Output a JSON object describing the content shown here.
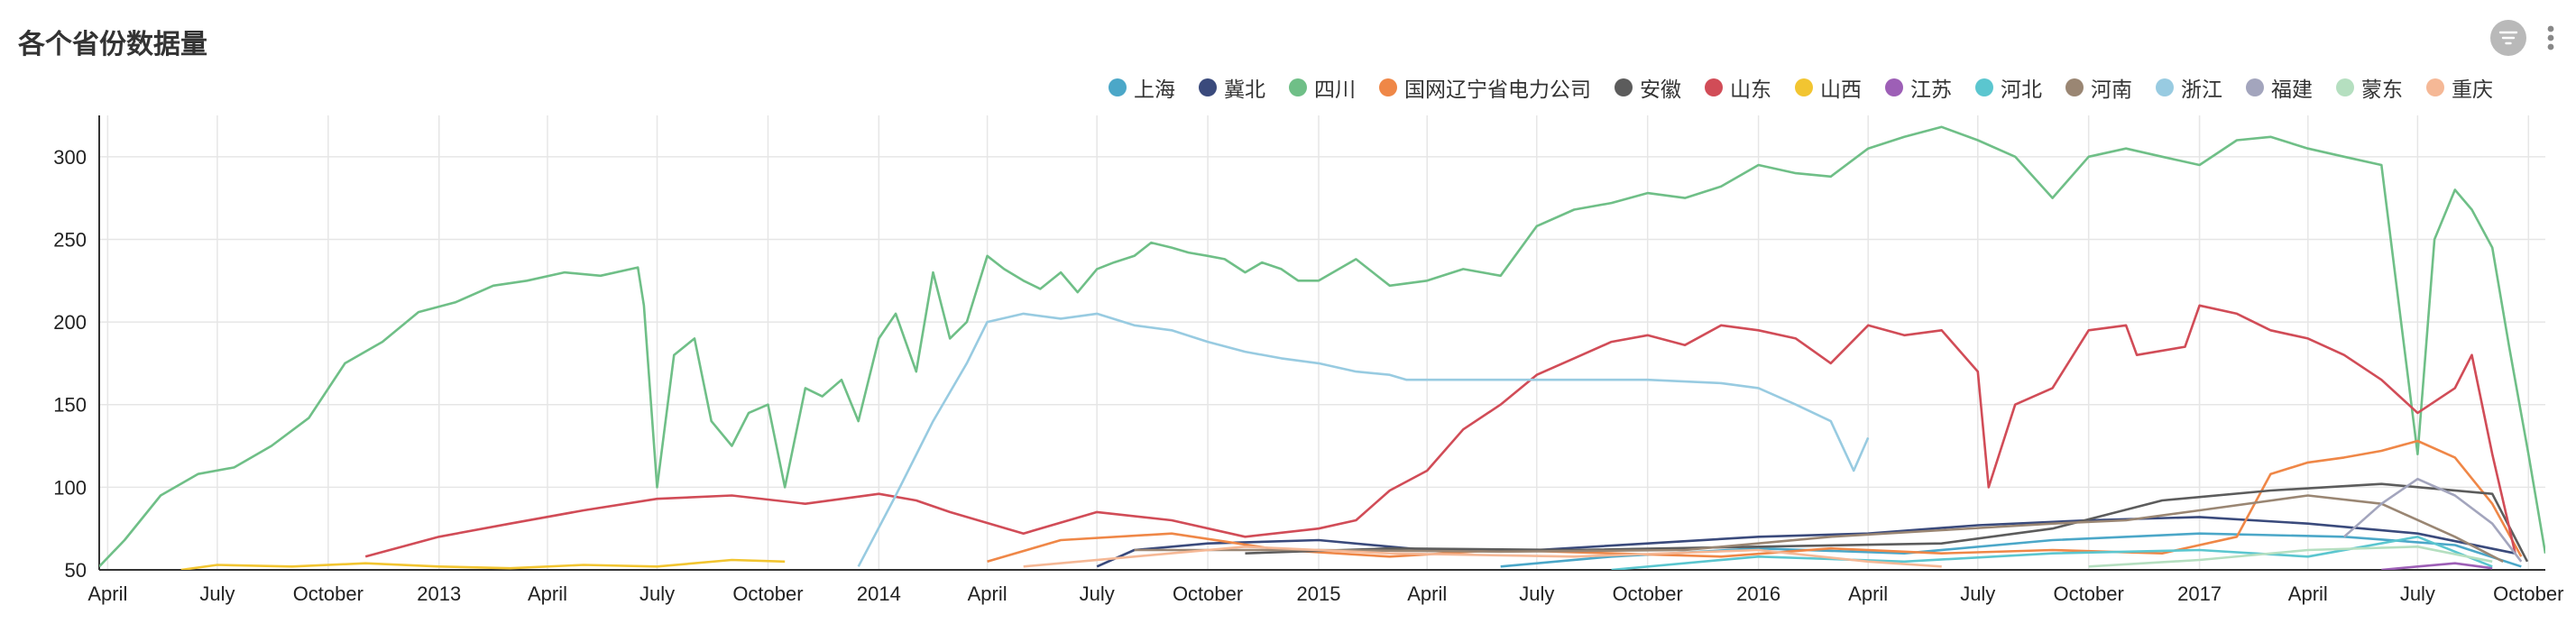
{
  "header": {
    "title": "各个省份数据量"
  },
  "toolbar": {
    "filter_icon": "filter-icon",
    "more_icon": "more-vertical-icon"
  },
  "chart_data": {
    "type": "line",
    "title": "各个省份数据量",
    "xlabel": "",
    "ylabel": "",
    "ylim": [
      50,
      325
    ],
    "y_ticks": [
      50,
      100,
      150,
      200,
      250,
      300
    ],
    "x_range": [
      "2012-03-25",
      "2017-10-15"
    ],
    "x_ticks": [
      {
        "date": "2012-04-01",
        "label": "April"
      },
      {
        "date": "2012-07-01",
        "label": "July"
      },
      {
        "date": "2012-10-01",
        "label": "October"
      },
      {
        "date": "2013-01-01",
        "label": "2013"
      },
      {
        "date": "2013-04-01",
        "label": "April"
      },
      {
        "date": "2013-07-01",
        "label": "July"
      },
      {
        "date": "2013-10-01",
        "label": "October"
      },
      {
        "date": "2014-01-01",
        "label": "2014"
      },
      {
        "date": "2014-04-01",
        "label": "April"
      },
      {
        "date": "2014-07-01",
        "label": "July"
      },
      {
        "date": "2014-10-01",
        "label": "October"
      },
      {
        "date": "2015-01-01",
        "label": "2015"
      },
      {
        "date": "2015-04-01",
        "label": "April"
      },
      {
        "date": "2015-07-01",
        "label": "July"
      },
      {
        "date": "2015-10-01",
        "label": "October"
      },
      {
        "date": "2016-01-01",
        "label": "2016"
      },
      {
        "date": "2016-04-01",
        "label": "April"
      },
      {
        "date": "2016-07-01",
        "label": "July"
      },
      {
        "date": "2016-10-01",
        "label": "October"
      },
      {
        "date": "2017-01-01",
        "label": "2017"
      },
      {
        "date": "2017-04-01",
        "label": "April"
      },
      {
        "date": "2017-07-01",
        "label": "July"
      },
      {
        "date": "2017-10-01",
        "label": "October"
      }
    ],
    "grid": true,
    "legend_position": "top-right",
    "series": [
      {
        "name": "上海",
        "color": "#4ba7c8",
        "x": [
          "2015-06-01",
          "2015-09-01",
          "2016-01-01",
          "2016-05-01",
          "2016-09-01",
          "2017-01-01",
          "2017-05-01",
          "2017-08-01",
          "2017-09-25"
        ],
        "y": [
          52,
          58,
          63,
          60,
          68,
          72,
          70,
          65,
          52
        ]
      },
      {
        "name": "冀北",
        "color": "#3a4a7c",
        "x": [
          "2014-07-01",
          "2014-08-01",
          "2014-10-01",
          "2015-01-01",
          "2015-04-01",
          "2015-07-01",
          "2015-10-01",
          "2016-01-01",
          "2016-04-01",
          "2016-07-01",
          "2016-10-01",
          "2017-01-01",
          "2017-04-01",
          "2017-07-01",
          "2017-09-20"
        ],
        "y": [
          52,
          62,
          66,
          68,
          62,
          62,
          66,
          70,
          72,
          77,
          80,
          82,
          78,
          72,
          60
        ]
      },
      {
        "name": "四川",
        "color": "#6fbf87",
        "x": [
          "2012-03-25",
          "2012-04-15",
          "2012-05-15",
          "2012-06-15",
          "2012-07-15",
          "2012-08-15",
          "2012-09-15",
          "2012-10-15",
          "2012-11-15",
          "2012-12-15",
          "2013-01-15",
          "2013-02-15",
          "2013-03-15",
          "2013-04-15",
          "2013-05-15",
          "2013-06-15",
          "2013-06-20",
          "2013-07-01",
          "2013-07-15",
          "2013-08-01",
          "2013-08-15",
          "2013-09-01",
          "2013-09-15",
          "2013-10-01",
          "2013-10-15",
          "2013-11-01",
          "2013-11-15",
          "2013-12-01",
          "2013-12-15",
          "2014-01-01",
          "2014-01-15",
          "2014-02-01",
          "2014-02-15",
          "2014-03-01",
          "2014-03-15",
          "2014-04-01",
          "2014-04-15",
          "2014-05-01",
          "2014-05-15",
          "2014-06-01",
          "2014-06-15",
          "2014-07-01",
          "2014-07-15",
          "2014-08-01",
          "2014-08-15",
          "2014-09-01",
          "2014-09-15",
          "2014-10-01",
          "2014-10-15",
          "2014-11-01",
          "2014-11-15",
          "2014-12-01",
          "2014-12-15",
          "2015-01-01",
          "2015-02-01",
          "2015-03-01",
          "2015-04-01",
          "2015-05-01",
          "2015-06-01",
          "2015-07-01",
          "2015-08-01",
          "2015-09-01",
          "2015-10-01",
          "2015-11-01",
          "2015-12-01",
          "2016-01-01",
          "2016-02-01",
          "2016-03-01",
          "2016-04-01",
          "2016-05-01",
          "2016-06-01",
          "2016-07-01",
          "2016-08-01",
          "2016-09-01",
          "2016-10-01",
          "2016-11-01",
          "2016-12-01",
          "2017-01-01",
          "2017-02-01",
          "2017-03-01",
          "2017-04-01",
          "2017-05-01",
          "2017-06-01",
          "2017-07-01",
          "2017-07-15",
          "2017-08-01",
          "2017-08-15",
          "2017-09-01",
          "2017-09-15",
          "2017-10-01",
          "2017-10-15"
        ],
        "y": [
          52,
          68,
          95,
          108,
          112,
          125,
          142,
          175,
          188,
          206,
          212,
          222,
          225,
          230,
          228,
          233,
          210,
          100,
          180,
          190,
          140,
          125,
          145,
          150,
          100,
          160,
          155,
          165,
          140,
          190,
          205,
          170,
          230,
          190,
          200,
          240,
          232,
          225,
          220,
          230,
          218,
          232,
          236,
          240,
          248,
          245,
          242,
          240,
          238,
          230,
          236,
          232,
          225,
          225,
          238,
          222,
          225,
          232,
          228,
          258,
          268,
          272,
          278,
          275,
          282,
          295,
          290,
          288,
          305,
          312,
          318,
          310,
          300,
          275,
          300,
          305,
          300,
          295,
          310,
          312,
          305,
          300,
          295,
          120,
          250,
          280,
          268,
          245,
          185,
          120,
          60
        ]
      },
      {
        "name": "国网辽宁省电力公司",
        "color": "#ef8747",
        "x": [
          "2014-04-01",
          "2014-06-01",
          "2014-09-01",
          "2014-12-01",
          "2015-03-01",
          "2015-06-01",
          "2015-09-01",
          "2015-12-01",
          "2016-03-01",
          "2016-06-01",
          "2016-09-01",
          "2016-12-01",
          "2017-02-01",
          "2017-03-01",
          "2017-04-01",
          "2017-05-01",
          "2017-06-01",
          "2017-07-01",
          "2017-08-01",
          "2017-09-01",
          "2017-09-25"
        ],
        "y": [
          55,
          68,
          72,
          62,
          58,
          62,
          60,
          58,
          63,
          60,
          62,
          60,
          70,
          108,
          115,
          118,
          122,
          128,
          118,
          90,
          58
        ]
      },
      {
        "name": "安徽",
        "color": "#5c5c5c",
        "x": [
          "2014-11-01",
          "2015-03-01",
          "2015-08-01",
          "2016-01-01",
          "2016-06-01",
          "2016-09-01",
          "2016-12-01",
          "2017-03-01",
          "2017-06-01",
          "2017-09-01",
          "2017-09-30"
        ],
        "y": [
          60,
          63,
          62,
          64,
          66,
          75,
          92,
          98,
          102,
          96,
          55
        ]
      },
      {
        "name": "山东",
        "color": "#d14c57",
        "x": [
          "2012-11-01",
          "2013-01-01",
          "2013-03-01",
          "2013-05-01",
          "2013-07-01",
          "2013-09-01",
          "2013-11-01",
          "2014-01-01",
          "2014-02-01",
          "2014-03-01",
          "2014-05-01",
          "2014-07-01",
          "2014-09-01",
          "2014-11-01",
          "2015-01-01",
          "2015-02-01",
          "2015-03-01",
          "2015-04-01",
          "2015-05-01",
          "2015-06-01",
          "2015-07-01",
          "2015-08-01",
          "2015-09-01",
          "2015-10-01",
          "2015-11-01",
          "2015-12-01",
          "2016-01-01",
          "2016-02-01",
          "2016-03-01",
          "2016-04-01",
          "2016-05-01",
          "2016-06-01",
          "2016-07-01",
          "2016-07-10",
          "2016-08-01",
          "2016-09-01",
          "2016-10-01",
          "2016-11-01",
          "2016-11-10",
          "2016-12-20",
          "2017-01-01",
          "2017-02-01",
          "2017-03-01",
          "2017-04-01",
          "2017-05-01",
          "2017-06-01",
          "2017-07-01",
          "2017-08-01",
          "2017-08-15",
          "2017-09-01",
          "2017-09-20"
        ],
        "y": [
          58,
          70,
          78,
          86,
          93,
          95,
          90,
          96,
          92,
          85,
          72,
          85,
          80,
          70,
          75,
          80,
          98,
          110,
          135,
          150,
          168,
          178,
          188,
          192,
          186,
          198,
          195,
          190,
          175,
          198,
          192,
          195,
          170,
          100,
          150,
          160,
          195,
          198,
          180,
          185,
          210,
          205,
          195,
          190,
          180,
          165,
          145,
          160,
          180,
          120,
          60
        ]
      },
      {
        "name": "山西",
        "color": "#f2c531",
        "x": [
          "2012-06-01",
          "2012-07-01",
          "2012-09-01",
          "2012-11-01",
          "2013-01-01",
          "2013-03-01",
          "2013-05-01",
          "2013-07-01",
          "2013-09-01",
          "2013-10-15"
        ],
        "y": [
          50,
          53,
          52,
          54,
          52,
          51,
          53,
          52,
          56,
          55
        ]
      },
      {
        "name": "江苏",
        "color": "#9d5fb6",
        "x": [
          "2017-06-01",
          "2017-07-01",
          "2017-08-01",
          "2017-09-01"
        ],
        "y": [
          50,
          52,
          54,
          51
        ]
      },
      {
        "name": "河北",
        "color": "#5bc6cf",
        "x": [
          "2015-09-01",
          "2016-01-01",
          "2016-05-01",
          "2016-09-01",
          "2017-01-01",
          "2017-04-01",
          "2017-07-01",
          "2017-09-01"
        ],
        "y": [
          50,
          58,
          55,
          60,
          62,
          58,
          70,
          52
        ]
      },
      {
        "name": "河南",
        "color": "#9a8673",
        "x": [
          "2014-08-01",
          "2015-01-01",
          "2015-06-01",
          "2015-11-01",
          "2016-03-01",
          "2016-06-01",
          "2016-09-01",
          "2016-11-01",
          "2017-01-01",
          "2017-04-01",
          "2017-06-01",
          "2017-08-01",
          "2017-09-10"
        ],
        "y": [
          62,
          62,
          61,
          62,
          70,
          74,
          78,
          80,
          86,
          95,
          90,
          70,
          55
        ]
      },
      {
        "name": "浙江",
        "color": "#98cbe1",
        "x": [
          "2013-12-15",
          "2014-01-15",
          "2014-02-15",
          "2014-03-15",
          "2014-04-01",
          "2014-05-01",
          "2014-06-01",
          "2014-07-01",
          "2014-08-01",
          "2014-09-01",
          "2014-10-01",
          "2014-11-01",
          "2014-12-01",
          "2015-01-01",
          "2015-02-01",
          "2015-03-01",
          "2015-03-15",
          "2015-10-01",
          "2015-12-01",
          "2016-01-01",
          "2016-02-01",
          "2016-03-01",
          "2016-03-20",
          "2016-04-01"
        ],
        "y": [
          52,
          95,
          140,
          175,
          200,
          205,
          202,
          205,
          198,
          195,
          188,
          182,
          178,
          175,
          170,
          168,
          165,
          165,
          163,
          160,
          150,
          140,
          110,
          130
        ]
      },
      {
        "name": "福建",
        "color": "#a3a5bd",
        "x": [
          "2017-05-01",
          "2017-06-01",
          "2017-07-01",
          "2017-08-01",
          "2017-09-01",
          "2017-09-25"
        ],
        "y": [
          70,
          90,
          105,
          95,
          78,
          55
        ]
      },
      {
        "name": "蒙东",
        "color": "#b5dfc0",
        "x": [
          "2016-10-01",
          "2017-01-01",
          "2017-04-01",
          "2017-07-01",
          "2017-09-01"
        ],
        "y": [
          52,
          56,
          62,
          64,
          55
        ]
      },
      {
        "name": "重庆",
        "color": "#f5b896",
        "x": [
          "2014-05-01",
          "2014-08-01",
          "2014-11-01",
          "2015-03-01",
          "2015-08-01",
          "2016-01-01",
          "2016-04-01",
          "2016-06-01"
        ],
        "y": [
          52,
          58,
          64,
          60,
          58,
          62,
          55,
          52
        ]
      }
    ]
  }
}
